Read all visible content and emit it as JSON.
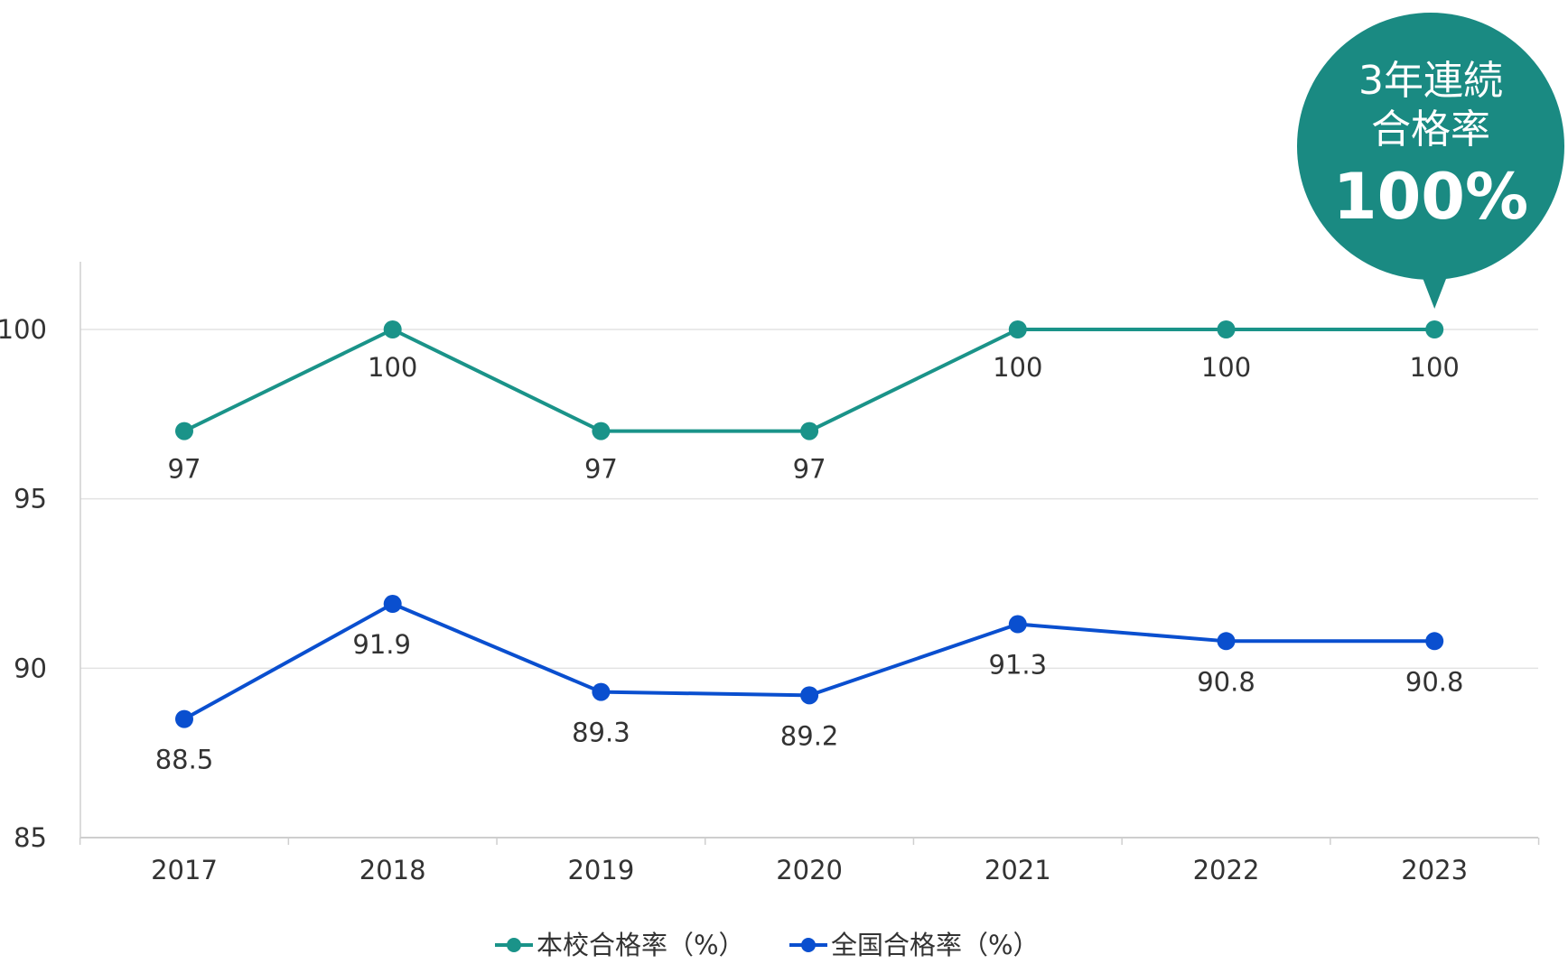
{
  "chart_data": {
    "type": "line",
    "title": "",
    "xlabel": "",
    "ylabel": "",
    "categories": [
      "2017",
      "2018",
      "2019",
      "2020",
      "2021",
      "2022",
      "2023"
    ],
    "y_ticks": [
      "100",
      "95",
      "90",
      "85"
    ],
    "y_tick_values": [
      100,
      95,
      90,
      85
    ],
    "ylim": [
      85,
      102
    ],
    "grid": true,
    "legend_position": "bottom",
    "series": [
      {
        "name": "本校合格率（%）",
        "color": "#1a9389",
        "values": [
          97,
          100,
          97,
          97,
          100,
          100,
          100
        ],
        "labels": [
          "97",
          "100",
          "97",
          "97",
          "100",
          "100",
          "100"
        ]
      },
      {
        "name": "全国合格率（%）",
        "color": "#0a4fcf",
        "values": [
          88.5,
          91.9,
          89.3,
          89.2,
          91.3,
          90.8,
          90.8
        ],
        "labels": [
          "88.5",
          "91.9",
          "89.3",
          "89.2",
          "91.3",
          "90.8",
          "90.8"
        ]
      }
    ],
    "annotation": {
      "lines": [
        "3年連続",
        "合格率"
      ],
      "value": "100%",
      "target_category": "2023",
      "color": "#1a8a82"
    }
  }
}
